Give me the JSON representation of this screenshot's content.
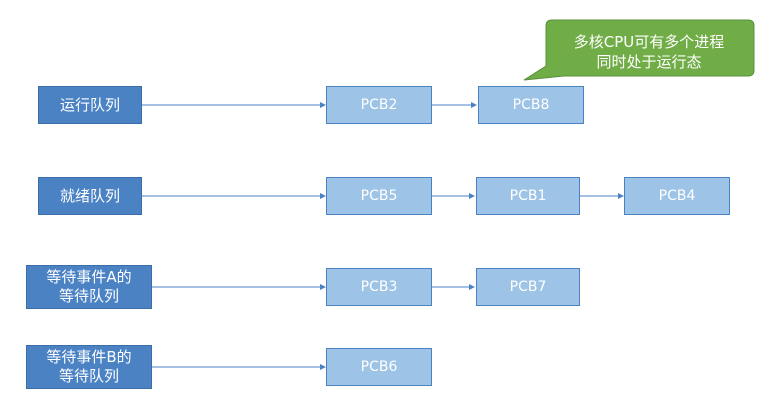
{
  "callout": {
    "text": "多核CPU可有多个进程\n同时处于运行态"
  },
  "queues": [
    {
      "label": "运行队列",
      "pcbs": [
        "PCB2",
        "PCB8"
      ]
    },
    {
      "label": "就绪队列",
      "pcbs": [
        "PCB5",
        "PCB1",
        "PCB4"
      ]
    },
    {
      "label": "等待事件A的\n等待队列",
      "pcbs": [
        "PCB3",
        "PCB7"
      ]
    },
    {
      "label": "等待事件B的\n等待队列",
      "pcbs": [
        "PCB6"
      ]
    }
  ],
  "colors": {
    "queue_fill": "#4a82c4",
    "pcb_fill": "#9dc3e6",
    "callout_fill": "#70ad47",
    "arrow": "#4a82c4"
  }
}
